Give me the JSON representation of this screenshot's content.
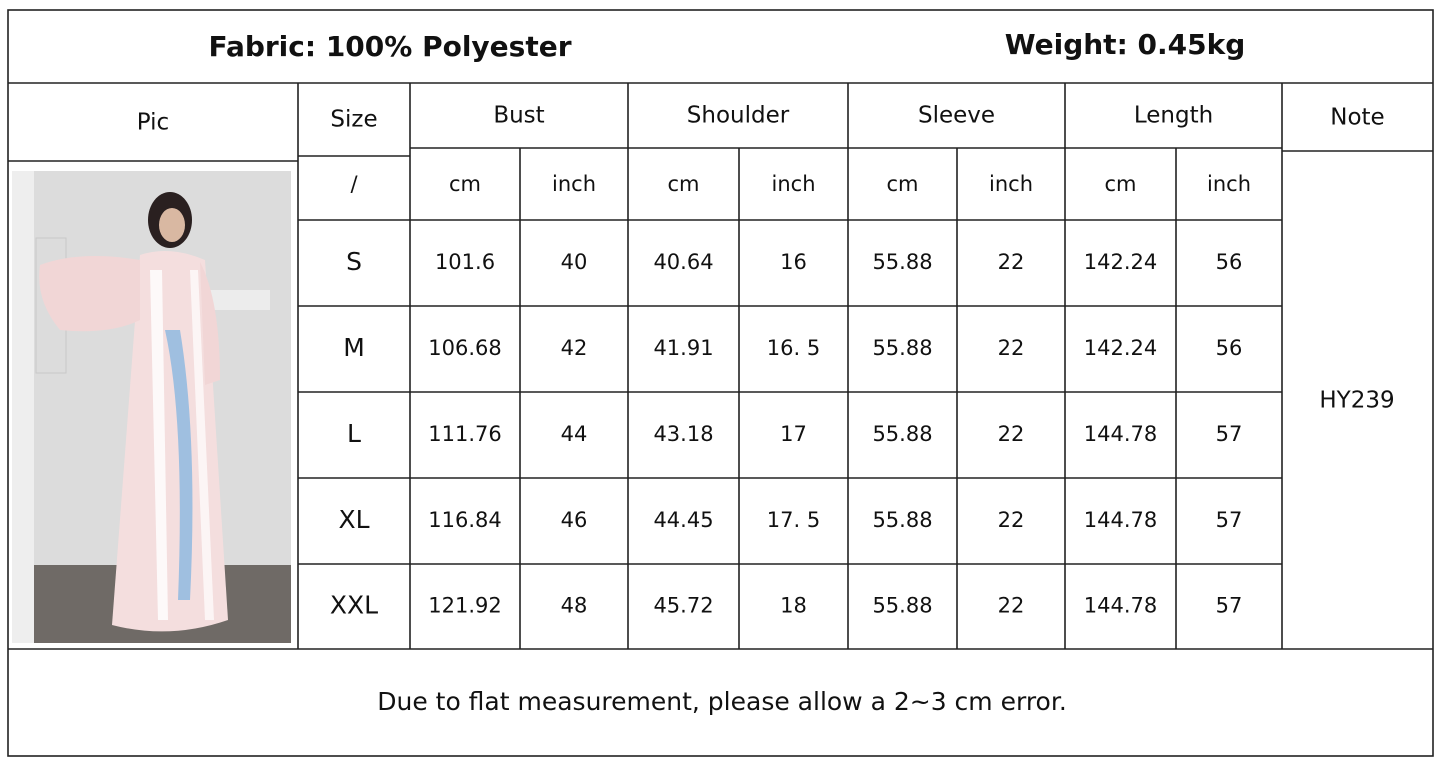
{
  "header": {
    "fabric": "Fabric: 100% Polyester",
    "weight": "Weight: 0.45kg"
  },
  "table": {
    "columns": [
      "Pic",
      "Size",
      "Bust",
      "Shoulder",
      "Sleeve",
      "Length",
      "Note"
    ],
    "units": [
      "/",
      "cm",
      "inch",
      "cm",
      "inch",
      "cm",
      "inch",
      "cm",
      "inch"
    ],
    "rows": [
      [
        "S",
        "101.6",
        "40",
        "40.64",
        "16",
        "55.88",
        "22",
        "142.24",
        "56"
      ],
      [
        "M",
        "106.68",
        "42",
        "41.91",
        "16. 5",
        "55.88",
        "22",
        "142.24",
        "56"
      ],
      [
        "L",
        "111.76",
        "44",
        "43.18",
        "17",
        "55.88",
        "22",
        "144.78",
        "57"
      ],
      [
        "XL",
        "116.84",
        "46",
        "44.45",
        "17. 5",
        "55.88",
        "22",
        "144.78",
        "57"
      ],
      [
        "XXL",
        "121.92",
        "48",
        "45.72",
        "18",
        "55.88",
        "22",
        "144.78",
        "57"
      ]
    ],
    "note": "HY239"
  },
  "footer": "Due to flat measurement, please allow a 2~3 cm error."
}
